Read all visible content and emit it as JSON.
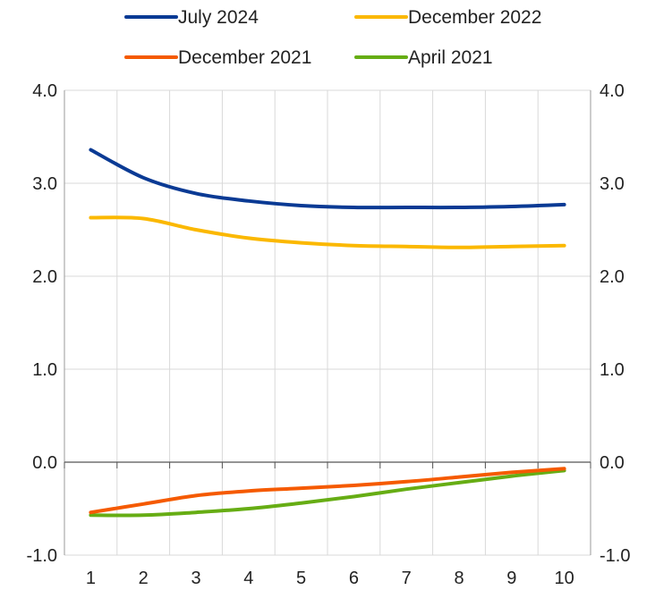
{
  "chart_data": {
    "type": "line",
    "x": [
      1,
      2,
      3,
      4,
      5,
      6,
      7,
      8,
      9,
      10
    ],
    "xlim": [
      0.5,
      10.5
    ],
    "ylim": [
      -1.0,
      4.0
    ],
    "y_ticks": [
      -1.0,
      0.0,
      1.0,
      2.0,
      3.0,
      4.0
    ],
    "y_tick_labels": [
      "-1.0",
      "0.0",
      "1.0",
      "2.0",
      "3.0",
      "4.0"
    ],
    "x_tick_labels": [
      "1",
      "2",
      "3",
      "4",
      "5",
      "6",
      "7",
      "8",
      "9",
      "10"
    ],
    "dual_y_axis": true,
    "grid": true,
    "legend_position": "top",
    "series": [
      {
        "name": "July 2024",
        "color": "#0a3a94",
        "values": [
          3.36,
          3.06,
          2.89,
          2.81,
          2.76,
          2.74,
          2.74,
          2.74,
          2.75,
          2.77
        ]
      },
      {
        "name": "December 2022",
        "color": "#fbb800",
        "values": [
          2.63,
          2.62,
          2.5,
          2.41,
          2.36,
          2.33,
          2.32,
          2.31,
          2.32,
          2.33
        ]
      },
      {
        "name": "December 2021",
        "color": "#f55a00",
        "values": [
          -0.54,
          -0.45,
          -0.36,
          -0.31,
          -0.28,
          -0.25,
          -0.21,
          -0.16,
          -0.11,
          -0.07
        ]
      },
      {
        "name": "April 2021",
        "color": "#66ad14",
        "values": [
          -0.57,
          -0.57,
          -0.54,
          -0.5,
          -0.44,
          -0.37,
          -0.29,
          -0.22,
          -0.15,
          -0.09
        ]
      }
    ]
  }
}
